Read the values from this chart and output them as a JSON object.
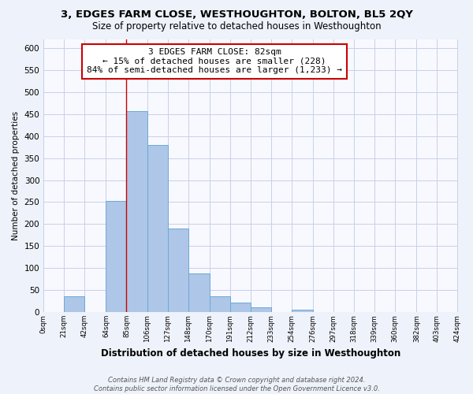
{
  "title": "3, EDGES FARM CLOSE, WESTHOUGHTON, BOLTON, BL5 2QY",
  "subtitle": "Size of property relative to detached houses in Westhoughton",
  "xlabel": "Distribution of detached houses by size in Westhoughton",
  "ylabel": "Number of detached properties",
  "bar_edges": [
    0,
    21,
    42,
    64,
    85,
    106,
    127,
    148,
    170,
    191,
    212,
    233,
    254,
    276,
    297,
    318,
    339,
    360,
    382,
    403,
    424
  ],
  "bar_heights": [
    0,
    35,
    0,
    253,
    457,
    380,
    190,
    88,
    35,
    22,
    10,
    0,
    5,
    0,
    0,
    0,
    0,
    0,
    0,
    0
  ],
  "bar_color": "#aec6e8",
  "bar_edge_color": "#6aaad4",
  "ylim": [
    0,
    620
  ],
  "yticks": [
    0,
    50,
    100,
    150,
    200,
    250,
    300,
    350,
    400,
    450,
    500,
    550,
    600
  ],
  "xtick_labels": [
    "0sqm",
    "21sqm",
    "42sqm",
    "64sqm",
    "85sqm",
    "106sqm",
    "127sqm",
    "148sqm",
    "170sqm",
    "191sqm",
    "212sqm",
    "233sqm",
    "254sqm",
    "276sqm",
    "297sqm",
    "318sqm",
    "339sqm",
    "360sqm",
    "382sqm",
    "403sqm",
    "424sqm"
  ],
  "vline_x": 85,
  "vline_color": "#cc0000",
  "annotation_line1": "3 EDGES FARM CLOSE: 82sqm",
  "annotation_line2": "← 15% of detached houses are smaller (228)",
  "annotation_line3": "84% of semi-detached houses are larger (1,233) →",
  "annotation_box_color": "#ffffff",
  "annotation_box_edge": "#cc0000",
  "footnote": "Contains HM Land Registry data © Crown copyright and database right 2024.\nContains public sector information licensed under the Open Government Licence v3.0.",
  "bg_color": "#eef2fa",
  "plot_bg_color": "#f8f9ff",
  "grid_color": "#c8d0e8"
}
